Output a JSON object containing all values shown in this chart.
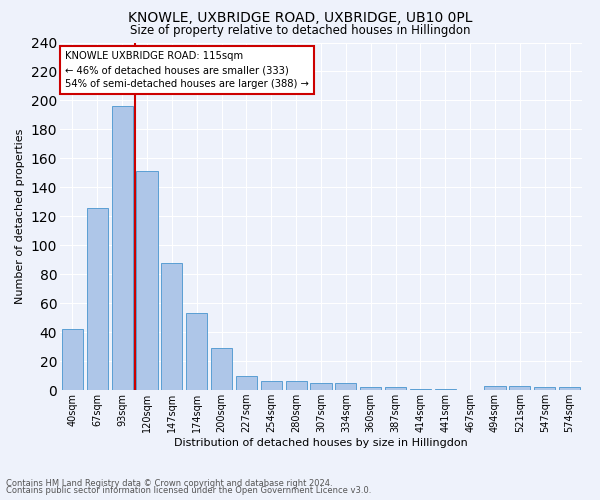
{
  "title": "KNOWLE, UXBRIDGE ROAD, UXBRIDGE, UB10 0PL",
  "subtitle": "Size of property relative to detached houses in Hillingdon",
  "xlabel": "Distribution of detached houses by size in Hillingdon",
  "ylabel": "Number of detached properties",
  "categories": [
    "40sqm",
    "67sqm",
    "93sqm",
    "120sqm",
    "147sqm",
    "174sqm",
    "200sqm",
    "227sqm",
    "254sqm",
    "280sqm",
    "307sqm",
    "334sqm",
    "360sqm",
    "387sqm",
    "414sqm",
    "441sqm",
    "467sqm",
    "494sqm",
    "521sqm",
    "547sqm",
    "574sqm"
  ],
  "values": [
    42,
    126,
    196,
    151,
    88,
    53,
    29,
    10,
    6,
    6,
    5,
    5,
    2,
    2,
    1,
    1,
    0,
    3,
    3,
    2,
    2
  ],
  "bar_color": "#aec6e8",
  "bar_edge_color": "#5a9fd4",
  "background_color": "#eef2fb",
  "grid_color": "#ffffff",
  "marker_line_color": "#cc0000",
  "annotation_line1": "KNOWLE UXBRIDGE ROAD: 115sqm",
  "annotation_line2": "← 46% of detached houses are smaller (333)",
  "annotation_line3": "54% of semi-detached houses are larger (388) →",
  "annotation_box_color": "#ffffff",
  "annotation_box_edge": "#cc0000",
  "footer_line1": "Contains HM Land Registry data © Crown copyright and database right 2024.",
  "footer_line2": "Contains public sector information licensed under the Open Government Licence v3.0.",
  "ylim": [
    0,
    240
  ],
  "yticks": [
    0,
    20,
    40,
    60,
    80,
    100,
    120,
    140,
    160,
    180,
    200,
    220,
    240
  ]
}
